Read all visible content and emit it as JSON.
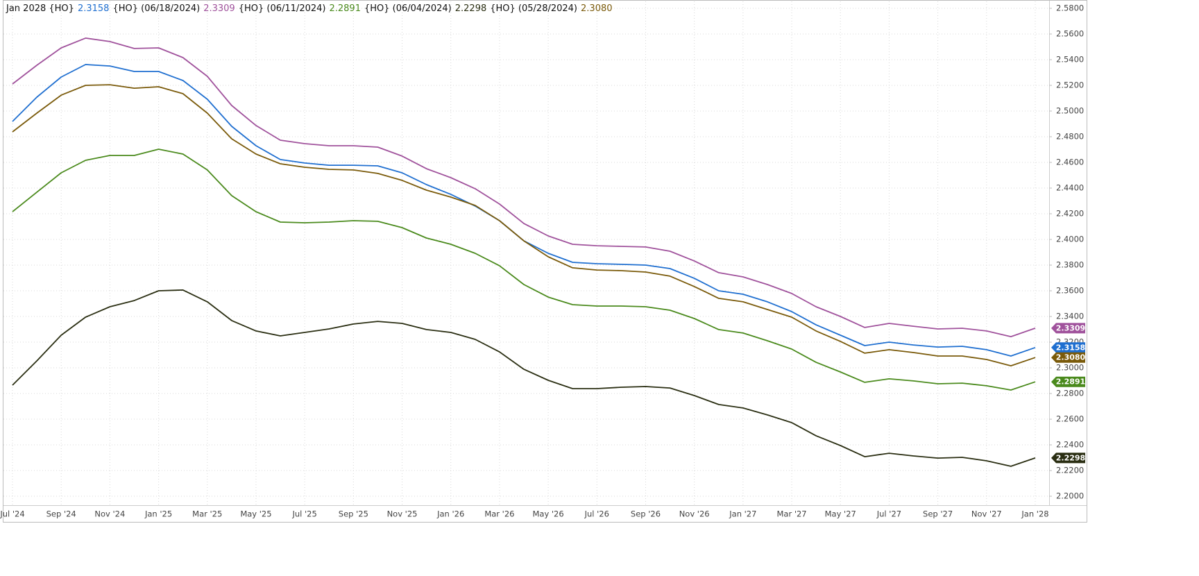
{
  "chart_data": {
    "type": "line",
    "grid": true,
    "legend_position": "top-left",
    "categories": [
      "Jul '24",
      null,
      "Sep '24",
      null,
      "Nov '24",
      null,
      "Jan '25",
      null,
      "Mar '25",
      null,
      "May '25",
      null,
      "Jul '25",
      null,
      "Sep '25",
      null,
      "Nov '25",
      null,
      "Jan '26",
      null,
      "Mar '26",
      null,
      "May '26",
      null,
      "Jul '26",
      null,
      "Sep '26",
      null,
      "Nov '26",
      null,
      "Jan '27",
      null,
      "Mar '27",
      null,
      "May '27",
      null,
      "Jul '27",
      null,
      "Sep '27",
      null,
      "Nov '27",
      null,
      "Jan '28"
    ],
    "ylim": [
      2.193,
      2.5854
    ],
    "yticks": [
      {
        "value": 2.2,
        "label": "2.2000"
      },
      {
        "value": 2.22,
        "label": "2.2200"
      },
      {
        "value": 2.24,
        "label": "2.2400"
      },
      {
        "value": 2.26,
        "label": "2.2600"
      },
      {
        "value": 2.28,
        "label": "2.2800"
      },
      {
        "value": 2.3,
        "label": "2.3000"
      },
      {
        "value": 2.32,
        "label": "2.3200"
      },
      {
        "value": 2.34,
        "label": "2.3400"
      },
      {
        "value": 2.36,
        "label": "2.3600"
      },
      {
        "value": 2.38,
        "label": "2.3800"
      },
      {
        "value": 2.4,
        "label": "2.4000"
      },
      {
        "value": 2.42,
        "label": "2.4200"
      },
      {
        "value": 2.44,
        "label": "2.4400"
      },
      {
        "value": 2.46,
        "label": "2.4600"
      },
      {
        "value": 2.48,
        "label": "2.4800"
      },
      {
        "value": 2.5,
        "label": "2.5000"
      },
      {
        "value": 2.52,
        "label": "2.5200"
      },
      {
        "value": 2.54,
        "label": "2.5400"
      },
      {
        "value": 2.56,
        "label": "2.5600"
      },
      {
        "value": 2.58,
        "label": "2.5800"
      }
    ],
    "series": [
      {
        "name": "Jan 2028 {HO}",
        "color": "#1f6fd0",
        "value_label": "2.3158",
        "values": [
          2.4919,
          2.5108,
          2.5265,
          2.5362,
          2.5351,
          2.5308,
          2.5308,
          2.5238,
          2.5092,
          2.4881,
          2.473,
          2.4622,
          2.4595,
          2.4578,
          2.4578,
          2.4573,
          2.4519,
          2.4427,
          2.4351,
          2.426,
          2.4146,
          2.3989,
          2.3892,
          2.3822,
          2.3811,
          2.3806,
          2.38,
          2.3773,
          2.3697,
          2.36,
          2.3573,
          2.3514,
          2.3438,
          2.3335,
          2.3254,
          2.3173,
          2.32,
          2.3178,
          2.3162,
          2.3168,
          2.3141,
          2.3092,
          2.3158
        ]
      },
      {
        "name": "{HO} (06/18/2024)",
        "color": "#a0529c",
        "value_label": "2.3309",
        "values": [
          2.5211,
          2.5357,
          2.5492,
          2.5568,
          2.5541,
          2.5487,
          2.5492,
          2.5416,
          2.527,
          2.5043,
          2.4887,
          2.4773,
          2.4746,
          2.473,
          2.473,
          2.4719,
          2.4649,
          2.4551,
          2.4481,
          2.4395,
          2.4276,
          2.4124,
          2.4027,
          2.3962,
          2.3951,
          2.3946,
          2.3941,
          2.3908,
          2.3832,
          2.3741,
          2.3708,
          2.3649,
          2.3579,
          2.3476,
          2.34,
          2.3314,
          2.3346,
          2.3324,
          2.3303,
          2.3308,
          2.3287,
          2.3243,
          2.3309
        ]
      },
      {
        "name": "{HO} (06/11/2024)",
        "color": "#4a8a1c",
        "value_label": "2.2891",
        "values": [
          2.4216,
          2.4368,
          2.4519,
          2.4616,
          2.4654,
          2.4654,
          2.4703,
          2.4665,
          2.4541,
          2.4341,
          2.4216,
          2.4135,
          2.413,
          2.4135,
          2.4146,
          2.4141,
          2.4092,
          2.4011,
          2.3962,
          2.3892,
          2.3795,
          2.3649,
          2.3551,
          2.3492,
          2.3481,
          2.3481,
          2.3476,
          2.3449,
          2.3384,
          2.3298,
          2.3271,
          2.3211,
          2.3146,
          2.3043,
          2.2968,
          2.2887,
          2.2914,
          2.2898,
          2.2876,
          2.2881,
          2.286,
          2.2827,
          2.2891
        ]
      },
      {
        "name": "{HO} (06/04/2024)",
        "color": "#2a2e12",
        "value_label": "2.2298",
        "values": [
          2.2865,
          2.3054,
          2.3254,
          2.3395,
          2.3476,
          2.3524,
          2.36,
          2.3606,
          2.3514,
          2.3368,
          2.3287,
          2.3249,
          2.3276,
          2.3303,
          2.3341,
          2.3362,
          2.3346,
          2.3298,
          2.3276,
          2.3222,
          2.3124,
          2.2989,
          2.2903,
          2.2838,
          2.2838,
          2.2849,
          2.2854,
          2.2843,
          2.2784,
          2.2714,
          2.2687,
          2.2633,
          2.2573,
          2.2471,
          2.2395,
          2.2308,
          2.2335,
          2.2314,
          2.2297,
          2.2303,
          2.2276,
          2.2233,
          2.2298
        ]
      },
      {
        "name": "{HO} (05/28/2024)",
        "color": "#7a5a0a",
        "value_label": "2.3080",
        "values": [
          2.4838,
          2.4984,
          2.5124,
          2.52,
          2.5205,
          2.5178,
          2.5189,
          2.5135,
          2.4984,
          2.4784,
          2.4665,
          2.4589,
          2.4562,
          2.4546,
          2.4541,
          2.4514,
          2.446,
          2.4384,
          2.433,
          2.4265,
          2.4146,
          2.3989,
          2.3865,
          2.3779,
          2.3762,
          2.3757,
          2.3746,
          2.3714,
          2.3633,
          2.3541,
          2.3514,
          2.3454,
          2.3395,
          2.3287,
          2.3206,
          2.3114,
          2.3141,
          2.3119,
          2.3092,
          2.3092,
          2.3065,
          2.3016,
          2.308
        ]
      }
    ]
  }
}
